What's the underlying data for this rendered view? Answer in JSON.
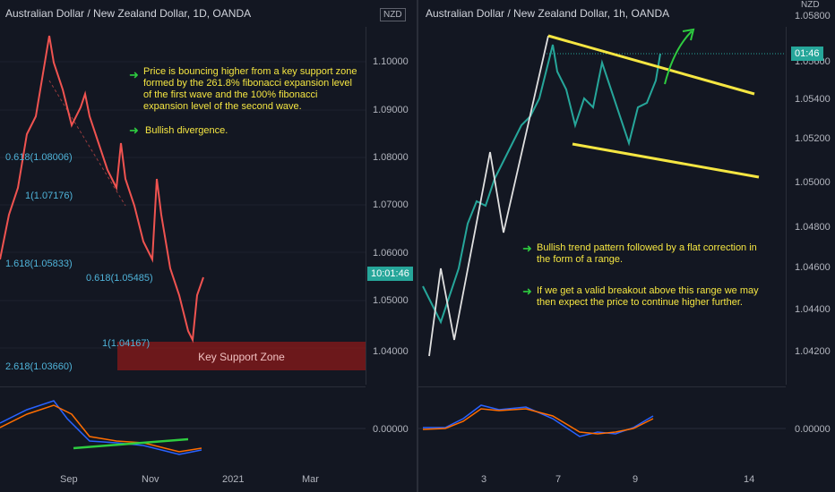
{
  "left_chart": {
    "title": "Australian Dollar / New Zealand Dollar, 1D, OANDA",
    "currency": "NZD",
    "price_labels": [
      "1.10000",
      "1.09000",
      "1.08000",
      "1.07000",
      "1.06000",
      "1.05000",
      "1.04000"
    ],
    "current_price": "10:01:46",
    "macd_label": "0.00000",
    "time_labels": [
      "Sep",
      "Nov",
      "2021",
      "Mar"
    ],
    "fib_labels": [
      "0.618(1.08006)",
      "1(1.07176)",
      "1.618(1.05833)",
      "0.618(1.05485)",
      "1(1.04167)",
      "2.618(1.03660)"
    ],
    "support_zone_label": "Key Support Zone",
    "notes": [
      "Price is bouncing higher from a key support zone formed by the 261.8% fibonacci expansion level of the first wave and the 100% fibonacci expansion level of the second wave.",
      "Bullish divergence."
    ]
  },
  "right_chart": {
    "title": "Australian Dollar / New Zealand Dollar, 1h, OANDA",
    "currency": "NZD",
    "price_labels": [
      "1.05800",
      "1.05600",
      "1.05400",
      "1.05200",
      "1.05000",
      "1.04800",
      "1.04600",
      "1.04400",
      "1.04200"
    ],
    "current_price": "01:46",
    "macd_label": "0.00000",
    "time_labels": [
      "3",
      "7",
      "9",
      "14"
    ],
    "notes": [
      "Bullish trend pattern followed by a flat correction in the form of a range.",
      "If we get a valid breakout above this range we may then expect the price to continue higher further."
    ]
  },
  "colors": {
    "background": "#131722",
    "up": "#26a69a",
    "down": "#ef5350",
    "fib": "#4fb3d9",
    "note": "#f5e642",
    "arrow": "#2ecc40",
    "zone": "#8b1a1a"
  }
}
